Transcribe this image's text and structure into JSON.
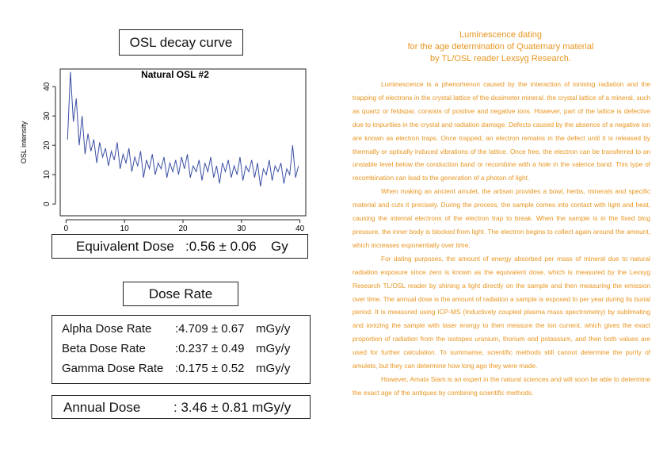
{
  "chart_data": {
    "type": "line",
    "title": "Natural OSL #2",
    "y_label": "OSL intensity",
    "x": [
      0.25,
      0.75,
      1.25,
      1.75,
      2.25,
      2.75,
      3.25,
      3.75,
      4.25,
      4.75,
      5.25,
      5.75,
      6.25,
      6.75,
      7.25,
      7.75,
      8.25,
      8.75,
      9.25,
      9.75,
      10.25,
      10.75,
      11.25,
      11.75,
      12.25,
      12.75,
      13.25,
      13.75,
      14.25,
      14.75,
      15.25,
      15.75,
      16.25,
      16.75,
      17.25,
      17.75,
      18.25,
      18.75,
      19.25,
      19.75,
      20.25,
      20.75,
      21.25,
      21.75,
      22.25,
      22.75,
      23.25,
      23.75,
      24.25,
      24.75,
      25.25,
      25.75,
      26.25,
      26.75,
      27.25,
      27.75,
      28.25,
      28.75,
      29.25,
      29.75,
      30.25,
      30.75,
      31.25,
      31.75,
      32.25,
      32.75,
      33.25,
      33.75,
      34.25,
      34.75,
      35.25,
      35.75,
      36.25,
      36.75,
      37.25,
      37.75,
      38.25,
      38.75,
      39.25,
      39.75
    ],
    "series": [
      {
        "color": "#3b4fa3",
        "values": [
          22,
          45,
          28,
          36,
          20,
          30,
          17,
          24,
          18,
          22,
          14,
          21,
          16,
          19,
          13,
          18,
          15,
          21,
          12,
          17,
          14,
          19,
          11,
          16,
          13,
          18,
          9,
          15,
          12,
          17,
          10,
          14,
          12,
          16,
          9,
          14,
          11,
          15,
          10,
          16,
          12,
          17,
          9,
          13,
          11,
          15,
          8,
          14,
          11,
          16,
          9,
          13,
          7,
          14,
          11,
          15,
          9,
          13,
          10,
          16,
          8,
          13,
          11,
          15,
          9,
          14,
          6,
          12,
          10,
          15,
          8,
          13,
          11,
          14,
          7,
          12,
          10,
          20,
          9,
          13
        ]
      }
    ],
    "xlim": [
      -1,
      41
    ],
    "ylim": [
      -4,
      46
    ],
    "xticks": [
      0,
      10,
      20,
      30,
      40
    ],
    "yticks": [
      0,
      10,
      20,
      30,
      40
    ]
  },
  "panels": {
    "curve_title": "OSL decay curve",
    "equivalent": {
      "label": "Equivalent Dose",
      "value": ":0.56 ± 0.06",
      "unit": "Gy"
    },
    "dose_rate_title": "Dose Rate",
    "rates": [
      {
        "label": "Alpha Dose Rate",
        "value": ":4.709 ± 0.67",
        "unit": "mGy/y"
      },
      {
        "label": "Beta Dose Rate",
        "value": ":0.237 ± 0.49",
        "unit": "mGy/y"
      },
      {
        "label": "Gamma Dose Rate",
        "value": ":0.175 ± 0.52",
        "unit": "mGy/y"
      }
    ],
    "annual": {
      "label": "Annual Dose",
      "value": ": 3.46 ± 0.81 mGy/y"
    }
  },
  "article": {
    "title": [
      "Luminescence dating",
      "for the age determination of Quaternary material",
      "by TL/OSL reader Lexsyg Research."
    ],
    "paragraphs": [
      "Luminescence is a phenomenon caused by the interaction of ionising radiation and the trapping of electrons in the crystal lattice of the dosimeter mineral. the crystal lattice of a mineral, such as quartz or feldspar, consists of positive and negative ions. However, part of the lattice is defective due to impurities in the crystal and radiation damage. Defects caused by the absence of a negative ion are known as electron traps. Once trapped, an electron remains in the defect until it is released by thermally or optically induced vibrations of the lattice. Once free, the electron can be transferred to an unstable level below the conduction band or recombine with a hole in the valence band. This type of recombination can lead to the generation of a photon of light.",
      "When making an ancient amulet, the artisan provides a bowl, herbs, minerals and specific material and cuts it precisely. During the process, the sample comes into contact with light and heat, causing the internal electrons of the electron trap to break. When the sample is in the fixed blog pressure, the inner body is blocked from light. The electron begins to collect again around the amount, which increases exponentially over time.",
      "For dating purposes, the amount of energy absorbed per mass of mineral due to natural radiation exposure since zero is known as the equivalent dose, which is measured by the Lexsyg Research TL/OSL reader by shining a light directly on the sample and then measuring the emission over time. The annual dose is the amount of radiation a sample is exposed to per year during its burial period. It is measured using ICP-MS (Inductively coupled plasma mass spectrometry) by sublimating and ionizing the sample with laser energy to then measure the ion current, which gives the exact proportion of radiation from the isotopes uranium, thorium and potassium, and then both values are used for further calculation. To summarise, scientific methods still cannot determine the purity of amulets, but they can determine how long ago they were made.",
      "However, Amata Siam is an expert in the natural sciences and will soon be able to determine the exact age of the antiques by combining scientific methods."
    ]
  }
}
